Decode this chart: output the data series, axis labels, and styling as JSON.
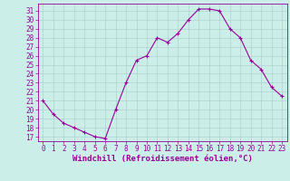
{
  "x": [
    0,
    1,
    2,
    3,
    4,
    5,
    6,
    7,
    8,
    9,
    10,
    11,
    12,
    13,
    14,
    15,
    16,
    17,
    18,
    19,
    20,
    21,
    22,
    23
  ],
  "y": [
    21,
    19.5,
    18.5,
    18,
    17.5,
    17,
    16.8,
    20,
    23,
    25.5,
    26,
    28,
    27.5,
    28.5,
    30,
    31.2,
    31.2,
    31,
    29,
    28,
    25.5,
    24.5,
    22.5,
    21.5
  ],
  "line_color": "#990099",
  "marker": "+",
  "marker_size": 3,
  "linewidth": 0.8,
  "bg_color": "#cceee8",
  "grid_color": "#aacccc",
  "xlabel": "Windchill (Refroidissement éolien,°C)",
  "xlabel_fontsize": 6.5,
  "tick_fontsize": 5.5,
  "xlim": [
    -0.5,
    23.5
  ],
  "ylim": [
    16.5,
    31.8
  ],
  "yticks": [
    17,
    18,
    19,
    20,
    21,
    22,
    23,
    24,
    25,
    26,
    27,
    28,
    29,
    30,
    31
  ],
  "xticks": [
    0,
    1,
    2,
    3,
    4,
    5,
    6,
    7,
    8,
    9,
    10,
    11,
    12,
    13,
    14,
    15,
    16,
    17,
    18,
    19,
    20,
    21,
    22,
    23
  ]
}
